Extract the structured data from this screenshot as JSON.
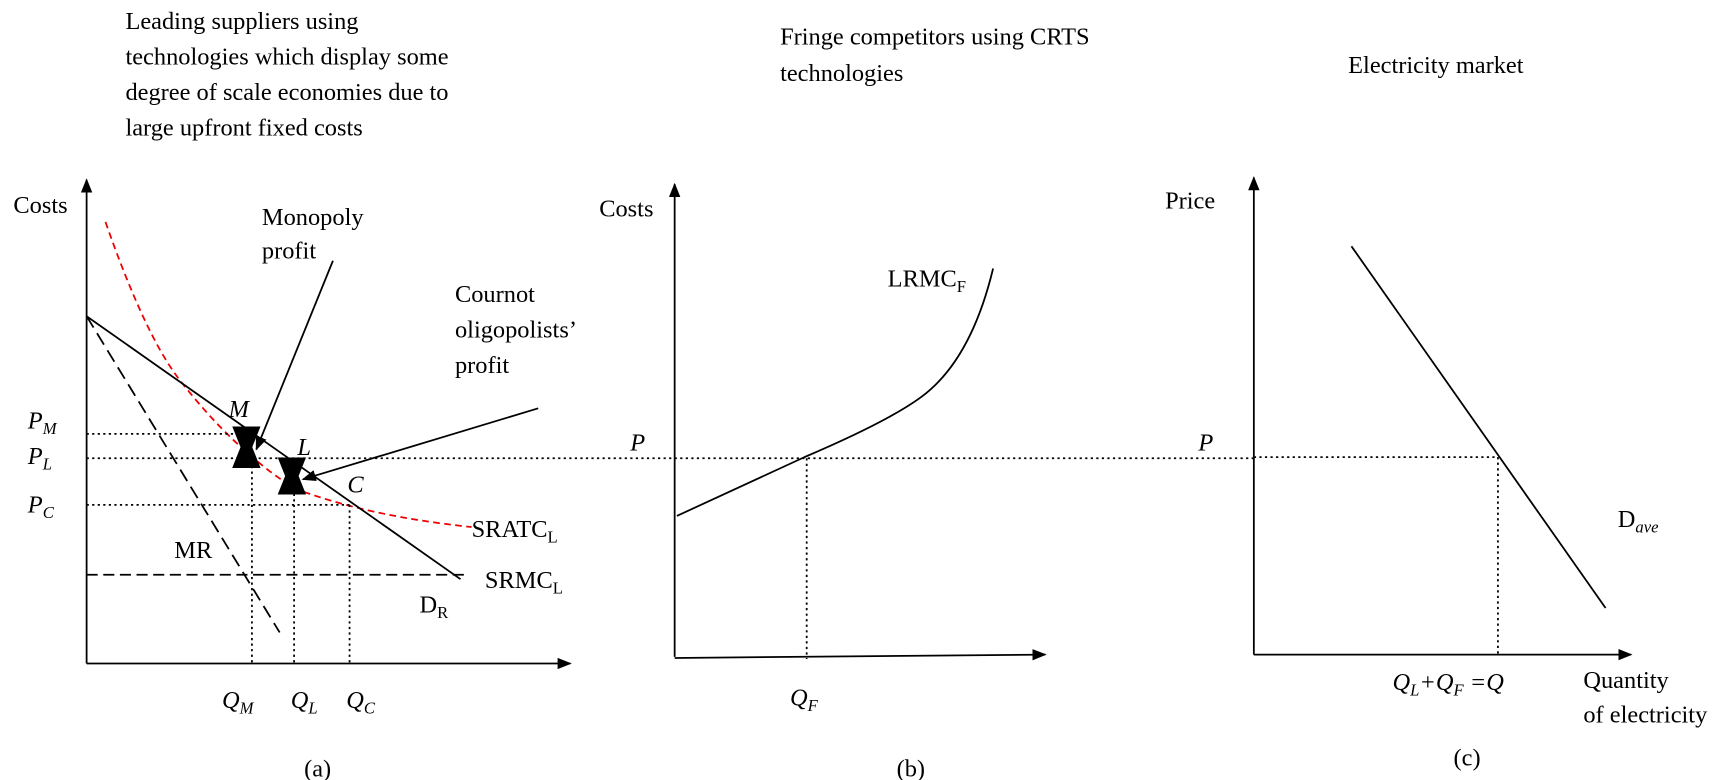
{
  "panel_a": {
    "title": [
      "Leading suppliers using",
      "technologies which display some",
      "degree of scale economies due to",
      "large upfront fixed costs"
    ],
    "y_axis": "Costs",
    "monopoly": [
      "Monopoly",
      "profit"
    ],
    "cournot": [
      "Cournot",
      "oligopolists’",
      "profit"
    ],
    "points": [
      "M",
      "L",
      "C"
    ],
    "price_labels": [
      {
        "main": "P",
        "sub": "M"
      },
      {
        "main": "P",
        "sub": "L"
      },
      {
        "main": "P",
        "sub": "C"
      }
    ],
    "mr": "MR",
    "sratc": {
      "main": "SRATC",
      "sub": "L"
    },
    "srmc": {
      "main": "SRMC",
      "sub": "L"
    },
    "demand": {
      "main": "D",
      "sub": "R"
    },
    "quantity_labels": [
      {
        "main": "Q",
        "sub": "M"
      },
      {
        "main": "Q",
        "sub": "L"
      },
      {
        "main": "Q",
        "sub": "C"
      }
    ],
    "caption": "(a)"
  },
  "panel_b": {
    "title": [
      "Fringe competitors using CRTS",
      "technologies"
    ],
    "y_axis": "Costs",
    "curve": {
      "main": "LRMC",
      "sub": "F"
    },
    "price": "P",
    "quantity": {
      "main": "Q",
      "sub": "F"
    },
    "caption": "(b)"
  },
  "panel_c": {
    "title": "Electricity market",
    "y_axis": "Price",
    "price": "P",
    "quantity": [
      {
        "main": "Q",
        "sub": "L"
      },
      "+",
      {
        "main": "Q",
        "sub": "F"
      },
      " =Q"
    ],
    "x_axis": [
      "Quantity",
      "of electricity"
    ],
    "demand": {
      "main": "D",
      "sub": "ave"
    },
    "caption": "(c)"
  }
}
